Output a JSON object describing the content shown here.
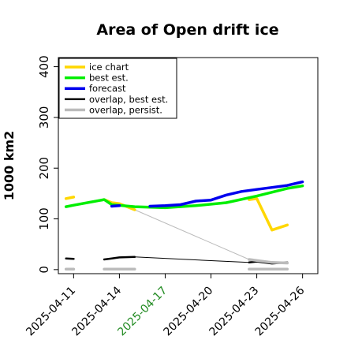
{
  "chart_data": {
    "type": "line",
    "title": "Area of Open drift ice",
    "ylabel": "1000 km2",
    "xlabel": "",
    "ylim": [
      -8,
      418
    ],
    "xlim": [
      "2025-04-10",
      "2025-04-27"
    ],
    "yticks": [
      0,
      100,
      200,
      300,
      400
    ],
    "xticks": [
      {
        "date": "2025-04-11",
        "label": "2025-04-11",
        "color": "#000000"
      },
      {
        "date": "2025-04-14",
        "label": "2025-04-14",
        "color": "#000000"
      },
      {
        "date": "2025-04-17",
        "label": "2025-04-17",
        "color": "#228b22"
      },
      {
        "date": "2025-04-20",
        "label": "2025-04-20",
        "color": "#000000"
      },
      {
        "date": "2025-04-23",
        "label": "2025-04-23",
        "color": "#000000"
      },
      {
        "date": "2025-04-26",
        "label": "2025-04-26",
        "color": "#000000"
      }
    ],
    "legend_position": "top-left",
    "series": [
      {
        "name": "ice chart",
        "color": "#ffd700",
        "width": 3.5,
        "segments": [
          [
            [
              "2025-04-10 12:00",
              140
            ],
            [
              "2025-04-11",
              143
            ]
          ],
          [
            [
              "2025-04-13",
              138
            ],
            [
              "2025-04-13 12:00",
              132
            ],
            [
              "2025-04-14",
              130
            ],
            [
              "2025-04-15",
              118
            ]
          ],
          [
            [
              "2025-04-22 12:00",
              138
            ],
            [
              "2025-04-23",
              140
            ],
            [
              "2025-04-24",
              78
            ],
            [
              "2025-04-25",
              88
            ]
          ]
        ]
      },
      {
        "name": "best est.",
        "color": "#00ee00",
        "width": 3.5,
        "segments": [
          [
            [
              "2025-04-10 12:00",
              124
            ],
            [
              "2025-04-11",
              127
            ],
            [
              "2025-04-13",
              138
            ],
            [
              "2025-04-13 12:00",
              128
            ],
            [
              "2025-04-15",
              124
            ],
            [
              "2025-04-17",
              122
            ],
            [
              "2025-04-19",
              126
            ],
            [
              "2025-04-21",
              132
            ],
            [
              "2025-04-23",
              145
            ],
            [
              "2025-04-25",
              160
            ],
            [
              "2025-04-26",
              165
            ]
          ]
        ]
      },
      {
        "name": "forecast",
        "color": "#0000ee",
        "width": 3.5,
        "segments": [
          [
            [
              "2025-04-13 12:00",
              125
            ],
            [
              "2025-04-14",
              126
            ]
          ],
          [
            [
              "2025-04-16",
              125
            ],
            [
              "2025-04-17",
              126
            ],
            [
              "2025-04-18",
              128
            ],
            [
              "2025-04-19",
              135
            ],
            [
              "2025-04-20",
              137
            ],
            [
              "2025-04-21",
              147
            ],
            [
              "2025-04-22",
              154
            ],
            [
              "2025-04-23",
              158
            ],
            [
              "2025-04-24",
              162
            ],
            [
              "2025-04-25",
              166
            ],
            [
              "2025-04-26",
              173
            ]
          ]
        ]
      },
      {
        "name": "overlap, best est.",
        "color": "#000000",
        "width": 2.5,
        "segments": [
          [
            [
              "2025-04-10 12:00",
              22
            ],
            [
              "2025-04-11",
              21
            ]
          ],
          [
            [
              "2025-04-13",
              20
            ],
            [
              "2025-04-13 12:00",
              22
            ],
            [
              "2025-04-14",
              24
            ],
            [
              "2025-04-15",
              25
            ]
          ],
          [
            [
              "2025-04-22 12:00",
              14
            ],
            [
              "2025-04-23",
              16
            ],
            [
              "2025-04-24",
              12
            ],
            [
              "2025-04-25",
              14
            ]
          ]
        ]
      },
      {
        "name": "overlap, persist.",
        "color": "#bbbbbb",
        "width": 3.5,
        "segments": [
          [
            [
              "2025-04-10 12:00",
              1
            ],
            [
              "2025-04-11",
              1
            ]
          ],
          [
            [
              "2025-04-13",
              1
            ],
            [
              "2025-04-15",
              1
            ]
          ],
          [
            [
              "2025-04-22 12:00",
              20
            ],
            [
              "2025-04-23",
              18
            ],
            [
              "2025-04-24",
              14
            ],
            [
              "2025-04-25",
              13
            ]
          ],
          [
            [
              "2025-04-22 12:00",
              1
            ],
            [
              "2025-04-25",
              1
            ]
          ]
        ]
      }
    ],
    "connectors": [
      {
        "color": "#bbbbbb",
        "width": 1,
        "points": [
          [
            "2025-04-15",
            118
          ],
          [
            "2025-04-22 12:00",
            20
          ]
        ]
      },
      {
        "color": "#000000",
        "width": 1,
        "points": [
          [
            "2025-04-15",
            25
          ],
          [
            "2025-04-22 12:00",
            14
          ]
        ]
      }
    ]
  }
}
